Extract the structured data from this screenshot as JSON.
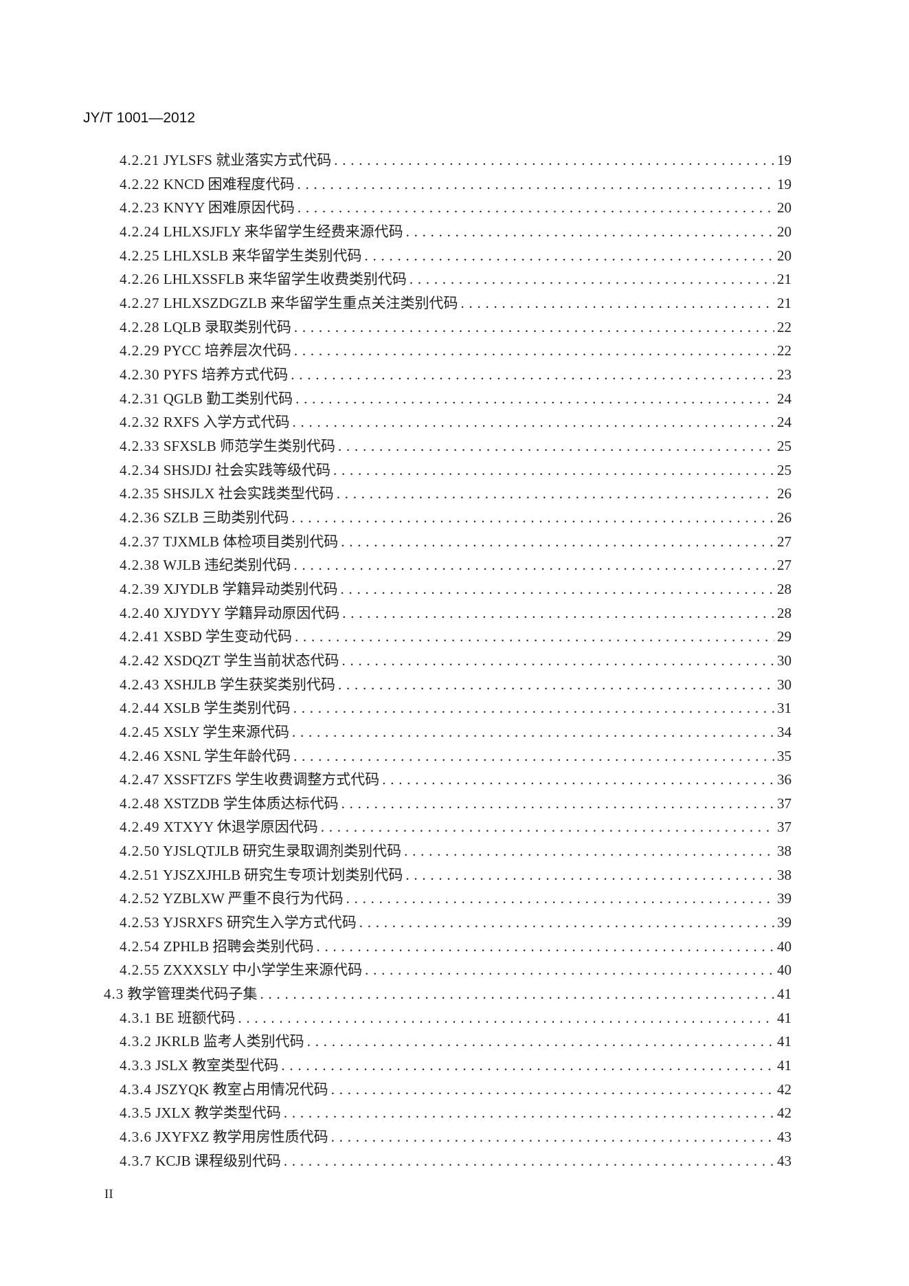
{
  "header": "JY/T 1001—2012",
  "footer": "II",
  "toc": [
    {
      "n": "4.2.21",
      "t": "JYLSFS 就业落实方式代码",
      "p": "19",
      "lvl": 3
    },
    {
      "n": "4.2.22",
      "t": "KNCD 困难程度代码",
      "p": "19",
      "lvl": 3
    },
    {
      "n": "4.2.23",
      "t": "KNYY 困难原因代码",
      "p": "20",
      "lvl": 3
    },
    {
      "n": "4.2.24",
      "t": "LHLXSJFLY 来华留学生经费来源代码",
      "p": "20",
      "lvl": 3
    },
    {
      "n": "4.2.25",
      "t": "LHLXSLB 来华留学生类别代码",
      "p": "20",
      "lvl": 3
    },
    {
      "n": "4.2.26",
      "t": "LHLXSSFLB 来华留学生收费类别代码",
      "p": "21",
      "lvl": 3
    },
    {
      "n": "4.2.27",
      "t": "LHLXSZDGZLB 来华留学生重点关注类别代码",
      "p": "21",
      "lvl": 3
    },
    {
      "n": "4.2.28",
      "t": "LQLB 录取类别代码",
      "p": "22",
      "lvl": 3
    },
    {
      "n": "4.2.29",
      "t": "PYCC 培养层次代码",
      "p": "22",
      "lvl": 3
    },
    {
      "n": "4.2.30",
      "t": "PYFS 培养方式代码",
      "p": "23",
      "lvl": 3
    },
    {
      "n": "4.2.31",
      "t": "QGLB 勤工类别代码",
      "p": "24",
      "lvl": 3
    },
    {
      "n": "4.2.32",
      "t": "RXFS 入学方式代码",
      "p": "24",
      "lvl": 3
    },
    {
      "n": "4.2.33",
      "t": "SFXSLB 师范学生类别代码",
      "p": "25",
      "lvl": 3
    },
    {
      "n": "4.2.34",
      "t": "SHSJDJ 社会实践等级代码",
      "p": "25",
      "lvl": 3
    },
    {
      "n": "4.2.35",
      "t": "SHSJLX 社会实践类型代码",
      "p": "26",
      "lvl": 3
    },
    {
      "n": "4.2.36",
      "t": "SZLB 三助类别代码",
      "p": "26",
      "lvl": 3
    },
    {
      "n": "4.2.37",
      "t": "TJXMLB 体检项目类别代码",
      "p": "27",
      "lvl": 3
    },
    {
      "n": "4.2.38",
      "t": "WJLB 违纪类别代码",
      "p": "27",
      "lvl": 3
    },
    {
      "n": "4.2.39",
      "t": "XJYDLB 学籍异动类别代码",
      "p": "28",
      "lvl": 3
    },
    {
      "n": "4.2.40",
      "t": "XJYDYY 学籍异动原因代码",
      "p": "28",
      "lvl": 3
    },
    {
      "n": "4.2.41",
      "t": "XSBD 学生变动代码",
      "p": "29",
      "lvl": 3
    },
    {
      "n": "4.2.42",
      "t": "XSDQZT 学生当前状态代码",
      "p": "30",
      "lvl": 3
    },
    {
      "n": "4.2.43",
      "t": "XSHJLB 学生获奖类别代码",
      "p": "30",
      "lvl": 3
    },
    {
      "n": "4.2.44",
      "t": "XSLB 学生类别代码",
      "p": "31",
      "lvl": 3
    },
    {
      "n": "4.2.45",
      "t": "XSLY 学生来源代码",
      "p": "34",
      "lvl": 3
    },
    {
      "n": "4.2.46",
      "t": "XSNL 学生年龄代码",
      "p": "35",
      "lvl": 3
    },
    {
      "n": "4.2.47",
      "t": "XSSFTZFS 学生收费调整方式代码",
      "p": "36",
      "lvl": 3
    },
    {
      "n": "4.2.48",
      "t": "XSTZDB 学生体质达标代码",
      "p": "37",
      "lvl": 3
    },
    {
      "n": "4.2.49",
      "t": "XTXYY 休退学原因代码",
      "p": "37",
      "lvl": 3
    },
    {
      "n": "4.2.50",
      "t": "YJSLQTJLB 研究生录取调剂类别代码",
      "p": "38",
      "lvl": 3
    },
    {
      "n": "4.2.51",
      "t": "YJSZXJHLB 研究生专项计划类别代码",
      "p": "38",
      "lvl": 3
    },
    {
      "n": "4.2.52",
      "t": "YZBLXW 严重不良行为代码",
      "p": "39",
      "lvl": 3
    },
    {
      "n": "4.2.53",
      "t": "YJSRXFS 研究生入学方式代码",
      "p": "39",
      "lvl": 3
    },
    {
      "n": "4.2.54",
      "t": "ZPHLB 招聘会类别代码",
      "p": "40",
      "lvl": 3
    },
    {
      "n": "4.2.55",
      "t": "ZXXXSLY 中小学学生来源代码",
      "p": "40",
      "lvl": 3
    },
    {
      "n": "4.3",
      "t": "教学管理类代码子集",
      "p": "41",
      "lvl": 2
    },
    {
      "n": "4.3.1",
      "t": "BE 班额代码",
      "p": "41",
      "lvl": 3
    },
    {
      "n": "4.3.2",
      "t": "JKRLB 监考人类别代码",
      "p": "41",
      "lvl": 3
    },
    {
      "n": "4.3.3",
      "t": "JSLX 教室类型代码",
      "p": "41",
      "lvl": 3
    },
    {
      "n": "4.3.4",
      "t": "JSZYQK 教室占用情况代码",
      "p": "42",
      "lvl": 3
    },
    {
      "n": "4.3.5",
      "t": "JXLX 教学类型代码",
      "p": "42",
      "lvl": 3
    },
    {
      "n": "4.3.6",
      "t": "JXYFXZ 教学用房性质代码",
      "p": "43",
      "lvl": 3
    },
    {
      "n": "4.3.7",
      "t": "KCJB 课程级别代码",
      "p": "43",
      "lvl": 3
    }
  ]
}
